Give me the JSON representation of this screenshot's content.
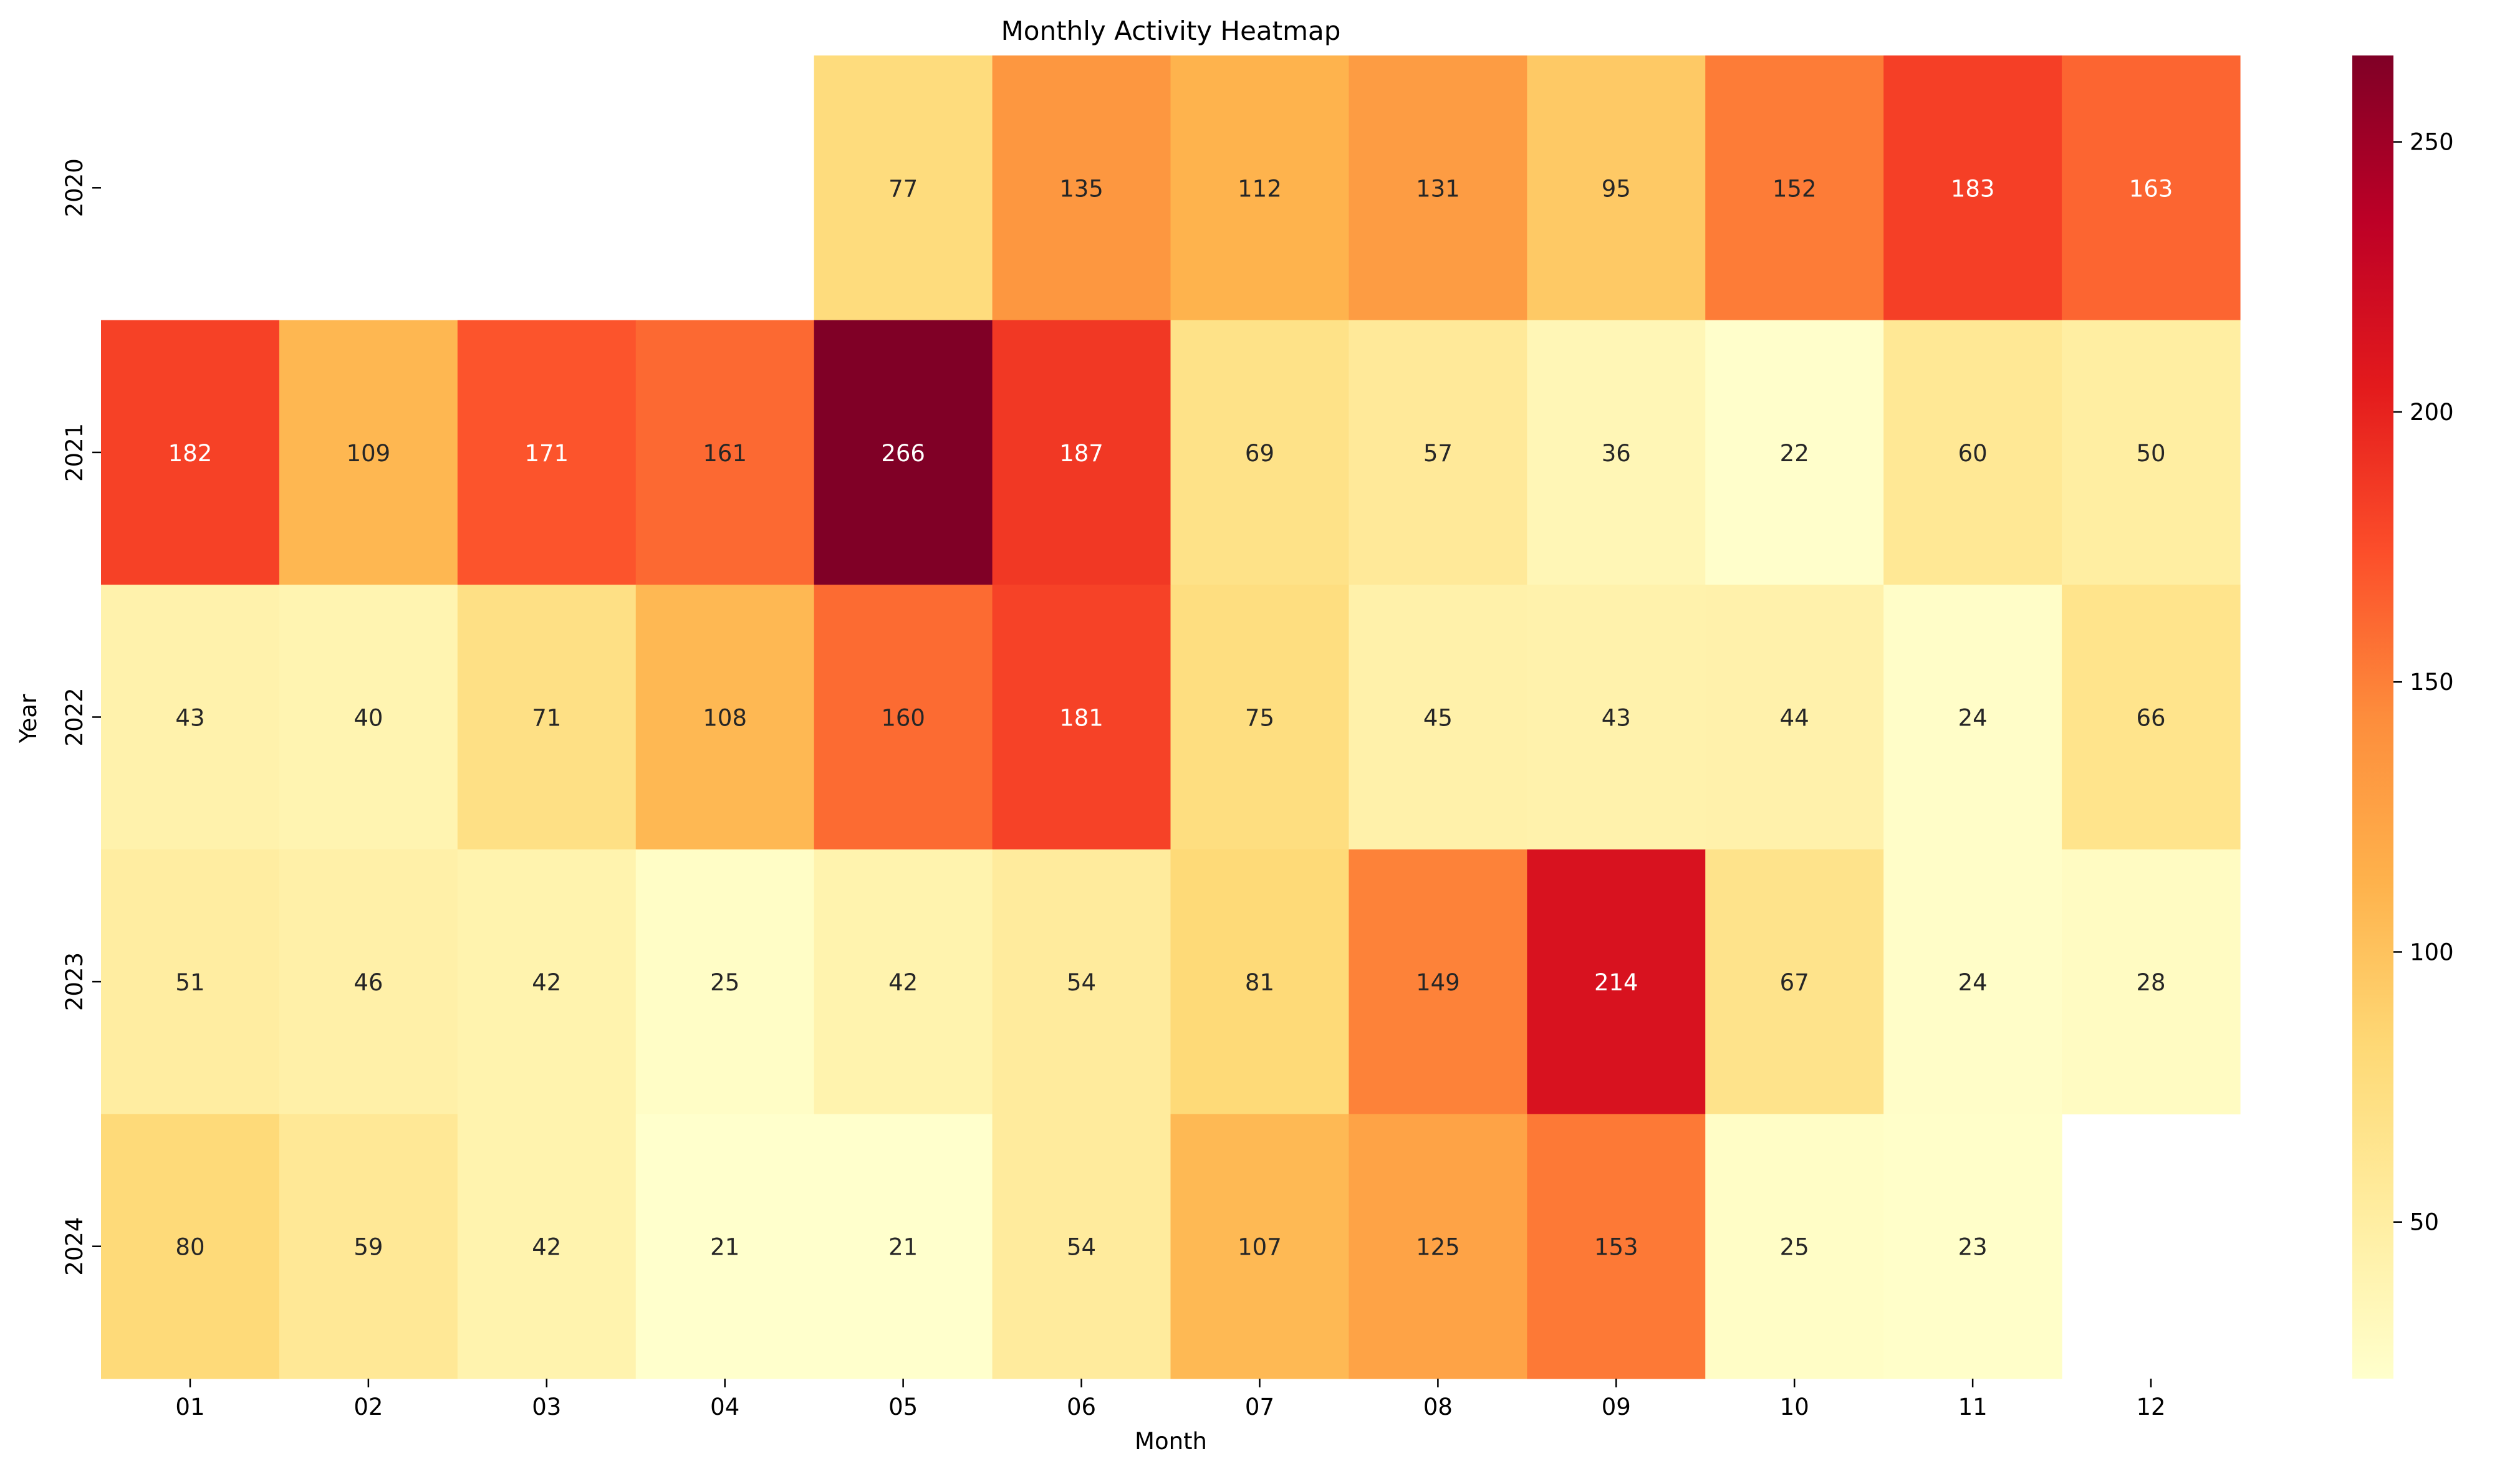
{
  "chart_data": {
    "type": "heatmap",
    "title": "Monthly Activity Heatmap",
    "xlabel": "Month",
    "ylabel": "Year",
    "x": [
      "01",
      "02",
      "03",
      "04",
      "05",
      "06",
      "07",
      "08",
      "09",
      "10",
      "11",
      "12"
    ],
    "y": [
      "2020",
      "2021",
      "2022",
      "2023",
      "2024"
    ],
    "values": [
      [
        null,
        null,
        null,
        null,
        77,
        135,
        112,
        131,
        95,
        152,
        183,
        163
      ],
      [
        182,
        109,
        171,
        161,
        266,
        187,
        69,
        57,
        36,
        22,
        60,
        50
      ],
      [
        43,
        40,
        71,
        108,
        160,
        181,
        75,
        45,
        43,
        44,
        24,
        66
      ],
      [
        51,
        46,
        42,
        25,
        42,
        54,
        81,
        149,
        214,
        67,
        24,
        28
      ],
      [
        80,
        59,
        42,
        21,
        21,
        54,
        107,
        125,
        153,
        25,
        23,
        null
      ]
    ],
    "colorbar": {
      "colormap": "YlOrRd",
      "range": [
        21,
        266
      ],
      "ticks": [
        50,
        100,
        150,
        200,
        250
      ]
    },
    "annotations": "cell values shown"
  }
}
